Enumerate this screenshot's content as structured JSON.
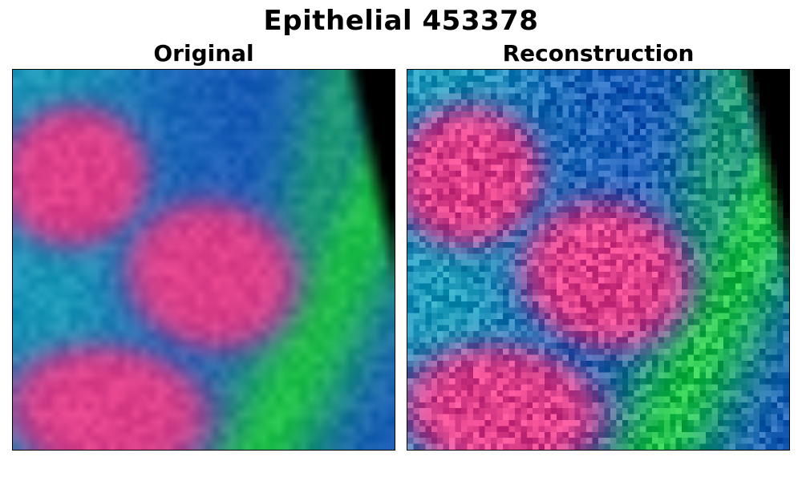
{
  "figure": {
    "title": "Epithelial 453378",
    "panels": [
      {
        "title": "Original"
      },
      {
        "title": "Reconstruction"
      }
    ]
  },
  "colors": {
    "background": "#ffffff",
    "nucleus": "#e0408a",
    "cytoplasm": "#1a3fb8",
    "membrane": "#1fc04a",
    "empty": "#000000"
  }
}
